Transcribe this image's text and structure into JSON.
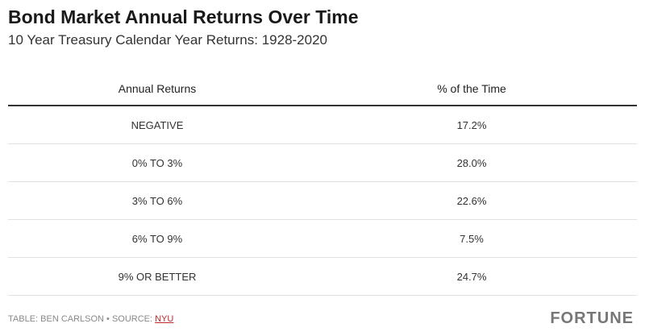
{
  "header": {
    "title": "Bond Market Annual Returns Over Time",
    "subtitle": "10 Year Treasury Calendar Year Returns: 1928-2020"
  },
  "table": {
    "columns": [
      "Annual Returns",
      "% of the Time"
    ],
    "rows": [
      [
        "NEGATIVE",
        "17.2%"
      ],
      [
        "0% TO 3%",
        "28.0%"
      ],
      [
        "3% TO 6%",
        "22.6%"
      ],
      [
        "6% TO 9%",
        "7.5%"
      ],
      [
        "9% OR BETTER",
        "24.7%"
      ]
    ]
  },
  "footer": {
    "credit": "TABLE: BEN CARLSON • SOURCE:",
    "source_link": "NYU",
    "logo": "FORTUNE"
  }
}
